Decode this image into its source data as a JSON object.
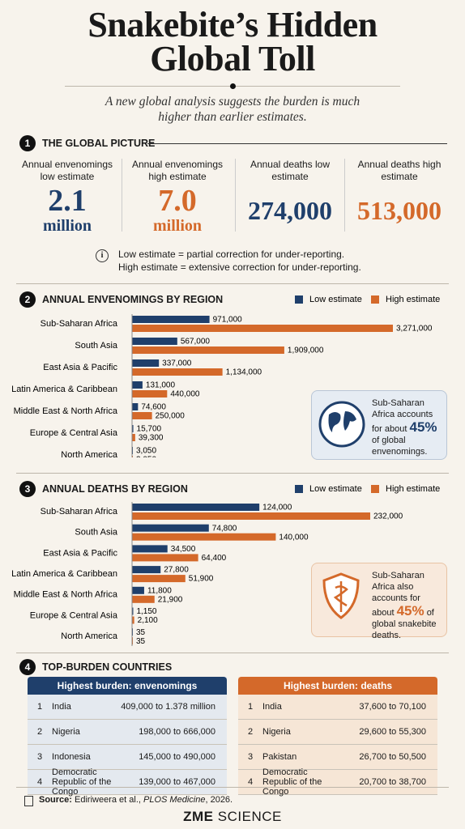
{
  "header": {
    "title": "Snakebite’s Hidden Global Toll",
    "subtitle": "A new global analysis suggests the burden is much higher than earlier estimates."
  },
  "global_picture": {
    "number": "1",
    "heading": "THE GLOBAL PICTURE",
    "stats": [
      {
        "label": "Annual envenomings low estimate",
        "value": "2.1",
        "unit": "million"
      },
      {
        "label": "Annual envenomings high estimate",
        "value": "7.0",
        "unit": "million"
      },
      {
        "label": "Annual deaths low estimate",
        "value": "274,000"
      },
      {
        "label": "Annual deaths high estimate",
        "value": "513,000"
      }
    ],
    "note": [
      "Low estimate = partial correction for under-reporting.",
      "High estimate = extensive correction for under-reporting."
    ]
  },
  "chart_data": [
    {
      "type": "bar",
      "number": "2",
      "title": "ANNUAL ENVENOMINGS BY REGION",
      "categories": [
        "Sub-Saharan Africa",
        "South Asia",
        "East Asia & Pacific",
        "Latin America & Caribbean",
        "Middle East & North Africa",
        "Europe & Central Asia",
        "North America"
      ],
      "series": [
        {
          "name": "Low estimate",
          "color": "#1f3f6b",
          "values": [
            971000,
            567000,
            337000,
            131000,
            74600,
            15700,
            3050
          ],
          "value_labels": [
            "971,000",
            "567,000",
            "337,000",
            "131,000",
            "74,600",
            "15,700",
            "3,050"
          ]
        },
        {
          "name": "High estimate",
          "color": "#d4692a",
          "values": [
            3271000,
            1909000,
            1134000,
            440000,
            250000,
            39300,
            3050
          ],
          "value_labels": [
            "3,271,000",
            "1,909,000",
            "1,134,000",
            "440,000",
            "250,000",
            "39,300",
            "3,050"
          ]
        }
      ],
      "callout": {
        "before": "Sub-Saharan Africa accounts for about",
        "highlight": "45%",
        "after": "of global envenomings."
      }
    },
    {
      "type": "bar",
      "number": "3",
      "title": "ANNUAL DEATHS BY REGION",
      "categories": [
        "Sub-Saharan Africa",
        "South Asia",
        "East Asia & Pacific",
        "Latin America & Caribbean",
        "Middle East & North Africa",
        "Europe & Central Asia",
        "North America"
      ],
      "series": [
        {
          "name": "Low estimate",
          "color": "#1f3f6b",
          "values": [
            124000,
            74800,
            34500,
            27800,
            11800,
            1150,
            35
          ],
          "value_labels": [
            "124,000",
            "74,800",
            "34,500",
            "27,800",
            "11,800",
            "1,150",
            "35"
          ]
        },
        {
          "name": "High estimate",
          "color": "#d4692a",
          "values": [
            232000,
            140000,
            64400,
            51900,
            21900,
            2100,
            35
          ],
          "value_labels": [
            "232,000",
            "140,000",
            "64,400",
            "51,900",
            "21,900",
            "2,100",
            "35"
          ]
        }
      ],
      "callout": {
        "before": "Sub-Saharan Africa also accounts for about",
        "highlight": "45%",
        "after": "of global snakebite deaths."
      }
    }
  ],
  "top_countries": {
    "number": "4",
    "heading": "TOP-BURDEN COUNTRIES",
    "tables": [
      {
        "title": "Highest burden: envenomings",
        "rows": [
          [
            "1",
            "India",
            "409,000 to 1.378 million"
          ],
          [
            "2",
            "Nigeria",
            "198,000 to 666,000"
          ],
          [
            "3",
            "Indonesia",
            "145,000 to 490,000"
          ],
          [
            "4",
            "Democratic Republic of the Congo",
            "139,000 to 467,000"
          ]
        ]
      },
      {
        "title": "Highest burden: deaths",
        "rows": [
          [
            "1",
            "India",
            "37,600 to 70,100"
          ],
          [
            "2",
            "Nigeria",
            "29,600 to 55,300"
          ],
          [
            "3",
            "Pakistan",
            "26,700 to 50,500"
          ],
          [
            "4",
            "Democratic Republic of the Congo",
            "20,700 to 38,700"
          ]
        ]
      }
    ]
  },
  "source": {
    "label": "Source:",
    "authors": "Ediriweera et al.,",
    "journal": "PLOS Medicine",
    "year": ", 2026."
  },
  "footer": {
    "brand_a": "ZME",
    "brand_b": "SCIENCE"
  }
}
